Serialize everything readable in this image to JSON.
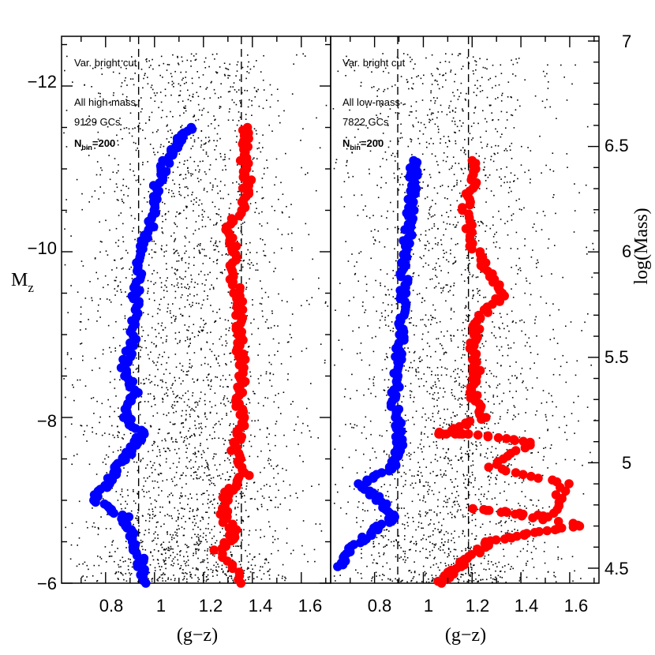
{
  "figure": {
    "left_ylabel": "M",
    "left_ylabel_sub": "z",
    "right_ylabel": "log(Mass)",
    "right_ticks": [
      "4.5",
      "5",
      "5.5",
      "6",
      "6.5",
      "7"
    ]
  },
  "chart_data": [
    {
      "type": "scatter",
      "panel": "left",
      "xlabel": "(g−z)",
      "ylabel": "M_z",
      "xlim": [
        0.62,
        1.72
      ],
      "ylim": [
        -6,
        -12.6
      ],
      "x_ticks": [
        "0.8",
        "1",
        "1.2",
        "1.4",
        "1.6"
      ],
      "y_ticks": [
        "−12",
        "−10",
        "−8",
        "−6"
      ],
      "annotations": [
        "Var. bright cut",
        "All high-mass",
        "9129 GCs",
        "N",
        "bin",
        "=200"
      ],
      "vlines": [
        0.935,
        1.355
      ],
      "series": [
        {
          "name": "background GCs",
          "color": "#000000",
          "count": 9129,
          "x_mean": 1.12,
          "x_sd": 0.23,
          "y_range": [
            -6,
            -12.4
          ]
        },
        {
          "name": "blue peak",
          "color": "#0000ff",
          "points": [
            [
              0.95,
              -6.0
            ],
            [
              0.94,
              -6.3
            ],
            [
              0.9,
              -6.6
            ],
            [
              0.88,
              -6.8
            ],
            [
              0.75,
              -7.0
            ],
            [
              0.8,
              -7.2
            ],
            [
              0.85,
              -7.4
            ],
            [
              0.9,
              -7.6
            ],
            [
              0.95,
              -7.8
            ],
            [
              0.88,
              -8.0
            ],
            [
              0.92,
              -8.3
            ],
            [
              0.87,
              -8.6
            ],
            [
              0.91,
              -8.9
            ],
            [
              0.92,
              -9.3
            ],
            [
              0.93,
              -9.6
            ],
            [
              0.94,
              -9.9
            ],
            [
              0.97,
              -10.2
            ],
            [
              1.0,
              -10.5
            ],
            [
              1.01,
              -10.8
            ],
            [
              1.05,
              -11.1
            ],
            [
              1.09,
              -11.3
            ],
            [
              1.15,
              -11.5
            ]
          ]
        },
        {
          "name": "red peak",
          "color": "#ff0000",
          "points": [
            [
              1.37,
              -6.0
            ],
            [
              1.26,
              -6.4
            ],
            [
              1.33,
              -6.6
            ],
            [
              1.28,
              -6.8
            ],
            [
              1.3,
              -7.1
            ],
            [
              1.37,
              -7.3
            ],
            [
              1.33,
              -7.6
            ],
            [
              1.36,
              -7.9
            ],
            [
              1.34,
              -8.2
            ],
            [
              1.36,
              -8.5
            ],
            [
              1.35,
              -8.8
            ],
            [
              1.34,
              -9.1
            ],
            [
              1.35,
              -9.4
            ],
            [
              1.32,
              -9.7
            ],
            [
              1.33,
              -10.0
            ],
            [
              1.3,
              -10.3
            ],
            [
              1.37,
              -10.6
            ],
            [
              1.38,
              -10.9
            ],
            [
              1.36,
              -11.2
            ],
            [
              1.38,
              -11.5
            ]
          ]
        }
      ]
    },
    {
      "type": "scatter",
      "panel": "right",
      "xlabel": "(g−z)",
      "ylabel": "log(Mass)",
      "xlim": [
        0.62,
        1.72
      ],
      "ylim": [
        -6,
        -12.6
      ],
      "x_ticks": [
        "0.8",
        "1",
        "1.2",
        "1.4",
        "1.6"
      ],
      "annotations": [
        "Var. bright cut",
        "All low-mass",
        "7822 GCs",
        "N",
        "bin",
        "=200"
      ],
      "vlines": [
        0.895,
        1.185
      ],
      "series": [
        {
          "name": "background GCs",
          "color": "#000000",
          "count": 7822,
          "x_mean": 1.1,
          "x_sd": 0.23,
          "y_range": [
            -6,
            -12.4
          ]
        },
        {
          "name": "blue peak",
          "color": "#0000ff",
          "points": [
            [
              0.66,
              -6.2
            ],
            [
              0.7,
              -6.4
            ],
            [
              0.78,
              -6.6
            ],
            [
              0.88,
              -6.8
            ],
            [
              0.82,
              -7.0
            ],
            [
              0.75,
              -7.2
            ],
            [
              0.87,
              -7.4
            ],
            [
              0.9,
              -7.6
            ],
            [
              0.9,
              -7.9
            ],
            [
              0.88,
              -8.2
            ],
            [
              0.89,
              -8.5
            ],
            [
              0.9,
              -8.8
            ],
            [
              0.91,
              -9.1
            ],
            [
              0.92,
              -9.4
            ],
            [
              0.92,
              -9.7
            ],
            [
              0.93,
              -10.0
            ],
            [
              0.94,
              -10.3
            ],
            [
              0.95,
              -10.6
            ],
            [
              0.96,
              -10.9
            ],
            [
              0.96,
              -11.1
            ]
          ]
        },
        {
          "name": "red peak",
          "color": "#ff0000",
          "points": [
            [
              1.07,
              -6.0
            ],
            [
              1.14,
              -6.2
            ],
            [
              1.19,
              -6.3
            ],
            [
              1.27,
              -6.5
            ],
            [
              1.44,
              -6.6
            ],
            [
              1.65,
              -6.7
            ],
            [
              1.22,
              -6.9
            ],
            [
              1.52,
              -6.8
            ],
            [
              1.58,
              -7.2
            ],
            [
              1.28,
              -7.4
            ],
            [
              1.44,
              -7.7
            ],
            [
              1.2,
              -7.8
            ],
            [
              1.06,
              -7.8
            ],
            [
              1.25,
              -8.0
            ],
            [
              1.2,
              -8.3
            ],
            [
              1.22,
              -8.6
            ],
            [
              1.2,
              -8.9
            ],
            [
              1.23,
              -9.2
            ],
            [
              1.33,
              -9.5
            ],
            [
              1.25,
              -9.8
            ],
            [
              1.2,
              -10.1
            ],
            [
              1.17,
              -10.5
            ],
            [
              1.2,
              -10.8
            ],
            [
              1.2,
              -11.1
            ]
          ]
        }
      ]
    }
  ]
}
